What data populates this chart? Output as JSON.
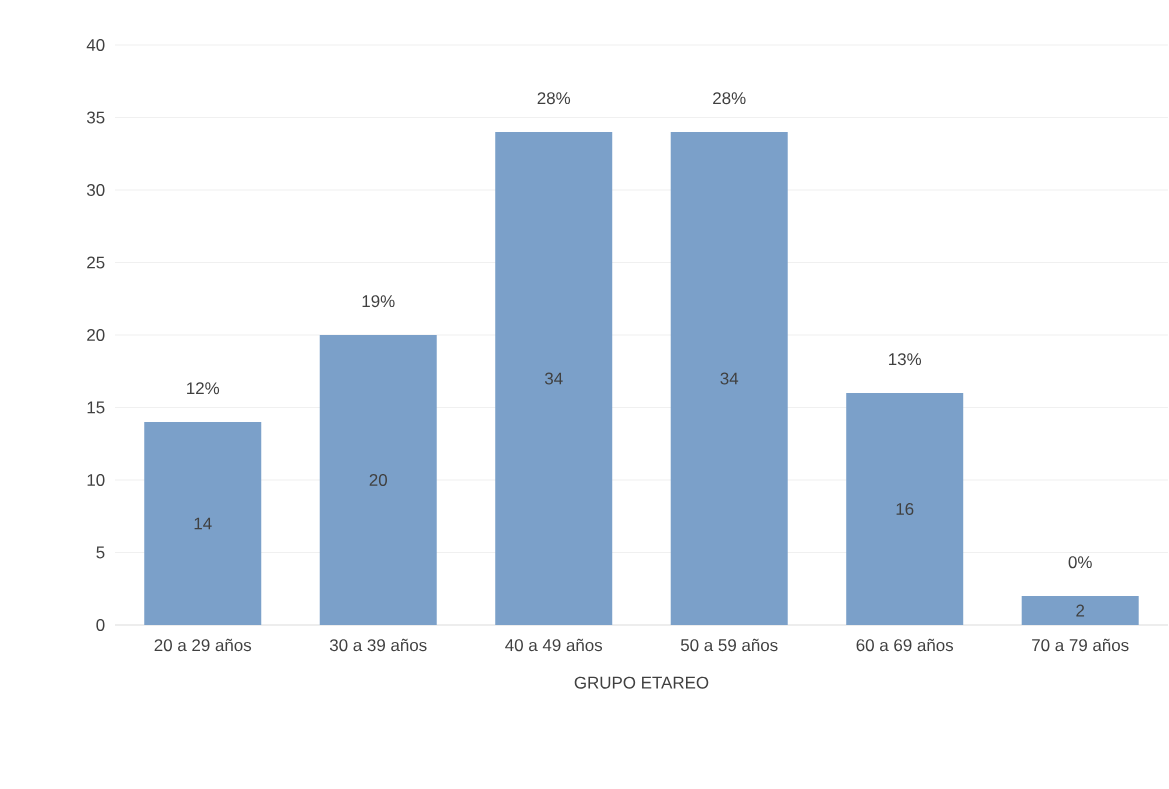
{
  "chart_data": {
    "type": "bar",
    "xlabel": "GRUPO ETAREO",
    "categories": [
      "20 a 29 años",
      "30 a 39 años",
      "40 a 49 años",
      "50 a 59 años",
      "60 a 69 años",
      "70 a 79 años"
    ],
    "values": [
      14,
      20,
      34,
      34,
      16,
      2
    ],
    "color": "#7ba0c9",
    "data_labels": true,
    "ylim": [
      0,
      40
    ],
    "yticks": [
      0,
      5,
      10,
      15,
      20,
      25,
      30,
      35,
      40
    ],
    "grid": "y",
    "annotations": [
      {
        "text": "12%",
        "x": "20 a 29 años",
        "y": 14
      },
      {
        "text": "19%",
        "x": "30 a 39 años",
        "y": 20
      },
      {
        "text": "28%",
        "x": "40 a 49 años",
        "y": 34
      },
      {
        "text": "28%",
        "x": "50 a 59 años",
        "y": 34
      },
      {
        "text": "13%",
        "x": "60 a 69 años",
        "y": 16
      },
      {
        "text": "0%",
        "x": "70 a 79 años",
        "y": 2
      }
    ]
  }
}
